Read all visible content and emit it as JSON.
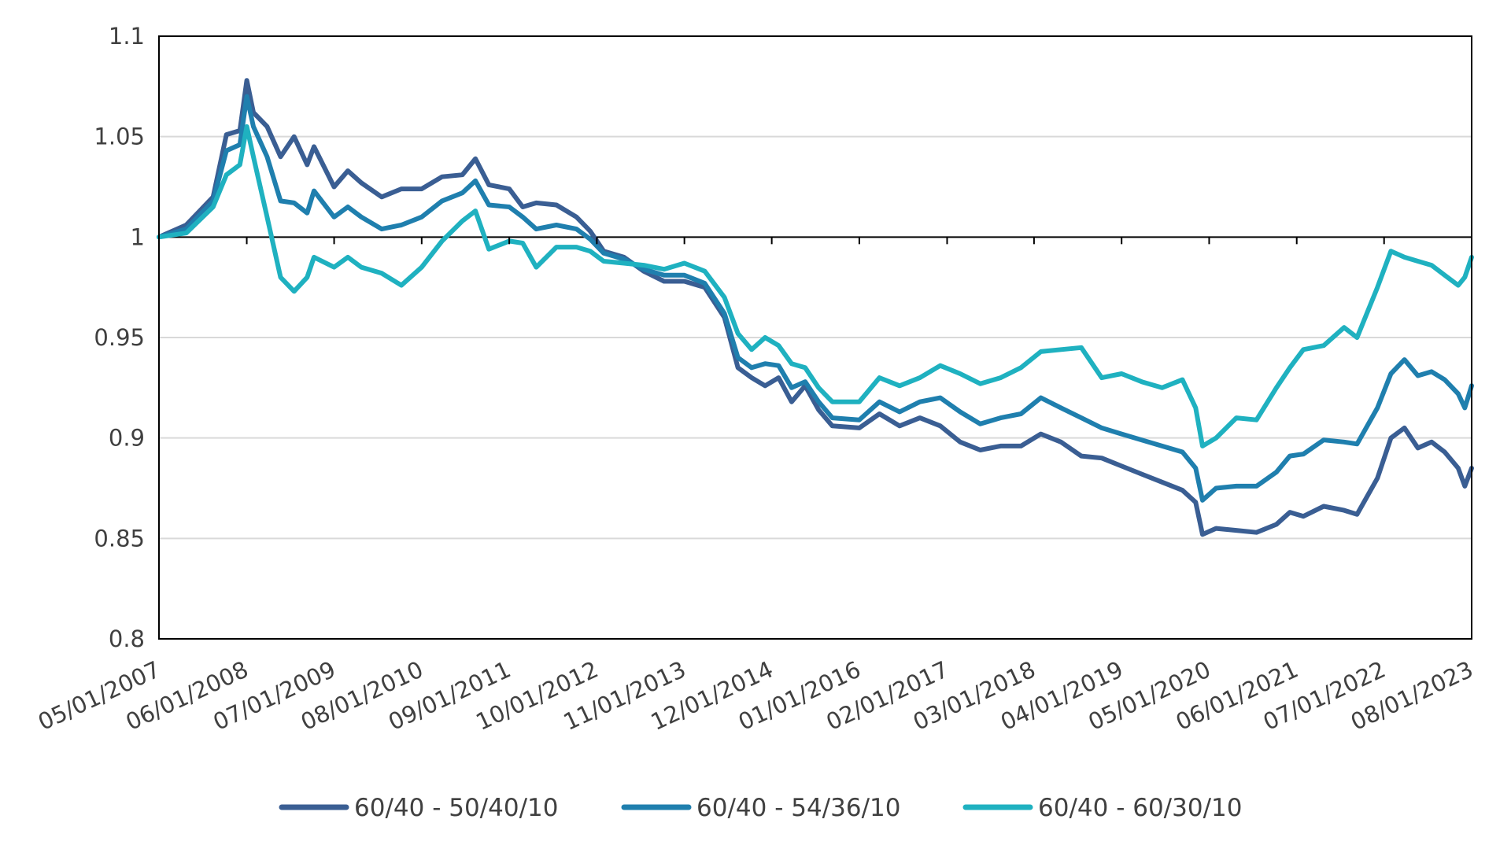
{
  "chart_data": {
    "type": "line",
    "title": "",
    "xlabel": "",
    "ylabel": "",
    "x_tick_labels": [
      "05/01/2007",
      "06/01/2008",
      "07/01/2009",
      "08/01/2010",
      "09/01/2011",
      "10/01/2012",
      "11/01/2013",
      "12/01/2014",
      "01/01/2016",
      "02/01/2017",
      "03/01/2018",
      "04/01/2019",
      "05/01/2020",
      "06/01/2021",
      "07/01/2022",
      "08/01/2023"
    ],
    "y_tick_labels": [
      "0.8",
      "0.85",
      "0.9",
      "0.95",
      "1",
      "1.05",
      "1.1"
    ],
    "ylim": [
      0.8,
      1.1
    ],
    "xlim": [
      "05/01/2007",
      "08/01/2023"
    ],
    "grid": "horizontal",
    "baseline": 1,
    "legend_position": "bottom",
    "series": [
      {
        "name": "60/40 - 50/40/10",
        "color": "#3a5e93",
        "points": [
          [
            "05/01/2007",
            1.0
          ],
          [
            "09/01/2007",
            1.006
          ],
          [
            "01/01/2008",
            1.02
          ],
          [
            "03/01/2008",
            1.051
          ],
          [
            "05/01/2008",
            1.053
          ],
          [
            "06/01/2008",
            1.078
          ],
          [
            "07/01/2008",
            1.062
          ],
          [
            "09/01/2008",
            1.055
          ],
          [
            "11/01/2008",
            1.04
          ],
          [
            "01/01/2009",
            1.05
          ],
          [
            "03/01/2009",
            1.036
          ],
          [
            "04/01/2009",
            1.045
          ],
          [
            "07/01/2009",
            1.025
          ],
          [
            "09/01/2009",
            1.033
          ],
          [
            "11/01/2009",
            1.027
          ],
          [
            "02/01/2010",
            1.02
          ],
          [
            "05/01/2010",
            1.024
          ],
          [
            "08/01/2010",
            1.024
          ],
          [
            "11/01/2010",
            1.03
          ],
          [
            "02/01/2011",
            1.031
          ],
          [
            "04/01/2011",
            1.039
          ],
          [
            "06/01/2011",
            1.026
          ],
          [
            "09/01/2011",
            1.024
          ],
          [
            "11/01/2011",
            1.015
          ],
          [
            "01/01/2012",
            1.017
          ],
          [
            "04/01/2012",
            1.016
          ],
          [
            "07/01/2012",
            1.01
          ],
          [
            "09/01/2012",
            1.003
          ],
          [
            "11/01/2012",
            0.993
          ],
          [
            "02/01/2013",
            0.99
          ],
          [
            "05/01/2013",
            0.983
          ],
          [
            "08/01/2013",
            0.978
          ],
          [
            "11/01/2013",
            0.978
          ],
          [
            "02/01/2014",
            0.975
          ],
          [
            "05/01/2014",
            0.96
          ],
          [
            "07/01/2014",
            0.935
          ],
          [
            "09/01/2014",
            0.93
          ],
          [
            "11/01/2014",
            0.926
          ],
          [
            "01/01/2015",
            0.93
          ],
          [
            "03/01/2015",
            0.918
          ],
          [
            "05/01/2015",
            0.926
          ],
          [
            "07/01/2015",
            0.914
          ],
          [
            "09/01/2015",
            0.906
          ],
          [
            "01/01/2016",
            0.905
          ],
          [
            "04/01/2016",
            0.912
          ],
          [
            "07/01/2016",
            0.906
          ],
          [
            "10/01/2016",
            0.91
          ],
          [
            "01/01/2017",
            0.906
          ],
          [
            "04/01/2017",
            0.898
          ],
          [
            "07/01/2017",
            0.894
          ],
          [
            "10/01/2017",
            0.896
          ],
          [
            "01/01/2018",
            0.896
          ],
          [
            "04/01/2018",
            0.902
          ],
          [
            "07/01/2018",
            0.898
          ],
          [
            "10/01/2018",
            0.891
          ],
          [
            "01/01/2019",
            0.89
          ],
          [
            "04/01/2019",
            0.886
          ],
          [
            "07/01/2019",
            0.882
          ],
          [
            "10/01/2019",
            0.878
          ],
          [
            "01/01/2020",
            0.874
          ],
          [
            "03/01/2020",
            0.868
          ],
          [
            "04/01/2020",
            0.852
          ],
          [
            "06/01/2020",
            0.855
          ],
          [
            "09/01/2020",
            0.854
          ],
          [
            "12/01/2020",
            0.853
          ],
          [
            "03/01/2021",
            0.857
          ],
          [
            "05/01/2021",
            0.863
          ],
          [
            "07/01/2021",
            0.861
          ],
          [
            "10/01/2021",
            0.866
          ],
          [
            "01/01/2022",
            0.864
          ],
          [
            "03/01/2022",
            0.862
          ],
          [
            "06/01/2022",
            0.88
          ],
          [
            "08/01/2022",
            0.9
          ],
          [
            "10/01/2022",
            0.905
          ],
          [
            "12/01/2022",
            0.895
          ],
          [
            "02/01/2023",
            0.898
          ],
          [
            "04/01/2023",
            0.893
          ],
          [
            "06/01/2023",
            0.885
          ],
          [
            "07/01/2023",
            0.876
          ],
          [
            "08/01/2023",
            0.885
          ]
        ]
      },
      {
        "name": "60/40 - 54/36/10",
        "color": "#1f7fae",
        "points": [
          [
            "05/01/2007",
            1.0
          ],
          [
            "09/01/2007",
            1.004
          ],
          [
            "01/01/2008",
            1.018
          ],
          [
            "03/01/2008",
            1.043
          ],
          [
            "05/01/2008",
            1.046
          ],
          [
            "06/01/2008",
            1.07
          ],
          [
            "07/01/2008",
            1.055
          ],
          [
            "09/01/2008",
            1.04
          ],
          [
            "11/01/2008",
            1.018
          ],
          [
            "01/01/2009",
            1.017
          ],
          [
            "03/01/2009",
            1.012
          ],
          [
            "04/01/2009",
            1.023
          ],
          [
            "07/01/2009",
            1.01
          ],
          [
            "09/01/2009",
            1.015
          ],
          [
            "11/01/2009",
            1.01
          ],
          [
            "02/01/2010",
            1.004
          ],
          [
            "05/01/2010",
            1.006
          ],
          [
            "08/01/2010",
            1.01
          ],
          [
            "11/01/2010",
            1.018
          ],
          [
            "02/01/2011",
            1.022
          ],
          [
            "04/01/2011",
            1.028
          ],
          [
            "06/01/2011",
            1.016
          ],
          [
            "09/01/2011",
            1.015
          ],
          [
            "11/01/2011",
            1.01
          ],
          [
            "01/01/2012",
            1.004
          ],
          [
            "04/01/2012",
            1.006
          ],
          [
            "07/01/2012",
            1.004
          ],
          [
            "09/01/2012",
            0.999
          ],
          [
            "11/01/2012",
            0.992
          ],
          [
            "02/01/2013",
            0.989
          ],
          [
            "05/01/2013",
            0.984
          ],
          [
            "08/01/2013",
            0.981
          ],
          [
            "11/01/2013",
            0.981
          ],
          [
            "02/01/2014",
            0.977
          ],
          [
            "05/01/2014",
            0.962
          ],
          [
            "07/01/2014",
            0.94
          ],
          [
            "09/01/2014",
            0.935
          ],
          [
            "11/01/2014",
            0.937
          ],
          [
            "01/01/2015",
            0.936
          ],
          [
            "03/01/2015",
            0.925
          ],
          [
            "05/01/2015",
            0.928
          ],
          [
            "07/01/2015",
            0.918
          ],
          [
            "09/01/2015",
            0.91
          ],
          [
            "01/01/2016",
            0.909
          ],
          [
            "04/01/2016",
            0.918
          ],
          [
            "07/01/2016",
            0.913
          ],
          [
            "10/01/2016",
            0.918
          ],
          [
            "01/01/2017",
            0.92
          ],
          [
            "04/01/2017",
            0.913
          ],
          [
            "07/01/2017",
            0.907
          ],
          [
            "10/01/2017",
            0.91
          ],
          [
            "01/01/2018",
            0.912
          ],
          [
            "04/01/2018",
            0.92
          ],
          [
            "07/01/2018",
            0.915
          ],
          [
            "10/01/2018",
            0.91
          ],
          [
            "01/01/2019",
            0.905
          ],
          [
            "04/01/2019",
            0.902
          ],
          [
            "07/01/2019",
            0.899
          ],
          [
            "10/01/2019",
            0.896
          ],
          [
            "01/01/2020",
            0.893
          ],
          [
            "03/01/2020",
            0.885
          ],
          [
            "04/01/2020",
            0.869
          ],
          [
            "06/01/2020",
            0.875
          ],
          [
            "09/01/2020",
            0.876
          ],
          [
            "12/01/2020",
            0.876
          ],
          [
            "03/01/2021",
            0.883
          ],
          [
            "05/01/2021",
            0.891
          ],
          [
            "07/01/2021",
            0.892
          ],
          [
            "10/01/2021",
            0.899
          ],
          [
            "01/01/2022",
            0.898
          ],
          [
            "03/01/2022",
            0.897
          ],
          [
            "06/01/2022",
            0.915
          ],
          [
            "08/01/2022",
            0.932
          ],
          [
            "10/01/2022",
            0.939
          ],
          [
            "12/01/2022",
            0.931
          ],
          [
            "02/01/2023",
            0.933
          ],
          [
            "04/01/2023",
            0.929
          ],
          [
            "06/01/2023",
            0.922
          ],
          [
            "07/01/2023",
            0.915
          ],
          [
            "08/01/2023",
            0.926
          ]
        ]
      },
      {
        "name": "60/40 - 60/30/10",
        "color": "#1fb1c0",
        "points": [
          [
            "05/01/2007",
            1.0
          ],
          [
            "09/01/2007",
            1.002
          ],
          [
            "01/01/2008",
            1.015
          ],
          [
            "03/01/2008",
            1.031
          ],
          [
            "05/01/2008",
            1.036
          ],
          [
            "06/01/2008",
            1.055
          ],
          [
            "07/01/2008",
            1.04
          ],
          [
            "09/01/2008",
            1.01
          ],
          [
            "11/01/2008",
            0.98
          ],
          [
            "01/01/2009",
            0.973
          ],
          [
            "03/01/2009",
            0.98
          ],
          [
            "04/01/2009",
            0.99
          ],
          [
            "07/01/2009",
            0.985
          ],
          [
            "09/01/2009",
            0.99
          ],
          [
            "11/01/2009",
            0.985
          ],
          [
            "02/01/2010",
            0.982
          ],
          [
            "05/01/2010",
            0.976
          ],
          [
            "08/01/2010",
            0.985
          ],
          [
            "11/01/2010",
            0.998
          ],
          [
            "02/01/2011",
            1.008
          ],
          [
            "04/01/2011",
            1.013
          ],
          [
            "06/01/2011",
            0.994
          ],
          [
            "09/01/2011",
            0.998
          ],
          [
            "11/01/2011",
            0.997
          ],
          [
            "01/01/2012",
            0.985
          ],
          [
            "04/01/2012",
            0.995
          ],
          [
            "07/01/2012",
            0.995
          ],
          [
            "09/01/2012",
            0.993
          ],
          [
            "11/01/2012",
            0.988
          ],
          [
            "02/01/2013",
            0.987
          ],
          [
            "05/01/2013",
            0.986
          ],
          [
            "08/01/2013",
            0.984
          ],
          [
            "11/01/2013",
            0.987
          ],
          [
            "02/01/2014",
            0.983
          ],
          [
            "05/01/2014",
            0.97
          ],
          [
            "07/01/2014",
            0.952
          ],
          [
            "09/01/2014",
            0.944
          ],
          [
            "11/01/2014",
            0.95
          ],
          [
            "01/01/2015",
            0.946
          ],
          [
            "03/01/2015",
            0.937
          ],
          [
            "05/01/2015",
            0.935
          ],
          [
            "07/01/2015",
            0.925
          ],
          [
            "09/01/2015",
            0.918
          ],
          [
            "01/01/2016",
            0.918
          ],
          [
            "04/01/2016",
            0.93
          ],
          [
            "07/01/2016",
            0.926
          ],
          [
            "10/01/2016",
            0.93
          ],
          [
            "01/01/2017",
            0.936
          ],
          [
            "04/01/2017",
            0.932
          ],
          [
            "07/01/2017",
            0.927
          ],
          [
            "10/01/2017",
            0.93
          ],
          [
            "01/01/2018",
            0.935
          ],
          [
            "04/01/2018",
            0.943
          ],
          [
            "07/01/2018",
            0.944
          ],
          [
            "10/01/2018",
            0.945
          ],
          [
            "01/01/2019",
            0.93
          ],
          [
            "04/01/2019",
            0.932
          ],
          [
            "07/01/2019",
            0.928
          ],
          [
            "10/01/2019",
            0.925
          ],
          [
            "01/01/2020",
            0.929
          ],
          [
            "03/01/2020",
            0.915
          ],
          [
            "04/01/2020",
            0.896
          ],
          [
            "06/01/2020",
            0.9
          ],
          [
            "09/01/2020",
            0.91
          ],
          [
            "12/01/2020",
            0.909
          ],
          [
            "03/01/2021",
            0.925
          ],
          [
            "05/01/2021",
            0.935
          ],
          [
            "07/01/2021",
            0.944
          ],
          [
            "10/01/2021",
            0.946
          ],
          [
            "01/01/2022",
            0.955
          ],
          [
            "03/01/2022",
            0.95
          ],
          [
            "06/01/2022",
            0.975
          ],
          [
            "08/01/2022",
            0.993
          ],
          [
            "10/01/2022",
            0.99
          ],
          [
            "12/01/2022",
            0.988
          ],
          [
            "02/01/2023",
            0.986
          ],
          [
            "04/01/2023",
            0.981
          ],
          [
            "06/01/2023",
            0.976
          ],
          [
            "07/01/2023",
            0.98
          ],
          [
            "08/01/2023",
            0.99
          ]
        ]
      }
    ]
  }
}
